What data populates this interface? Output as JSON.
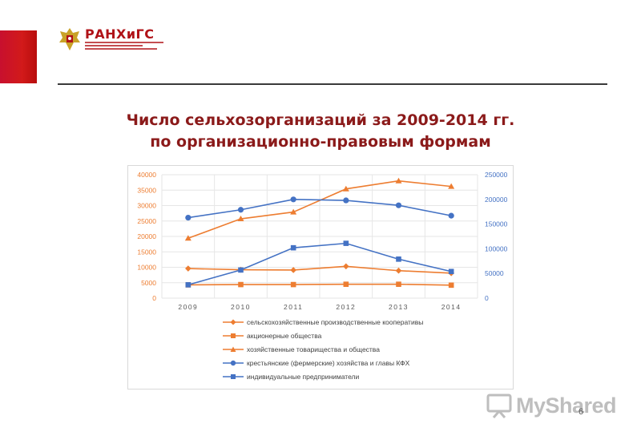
{
  "header": {
    "logo_name": "РАНХиГС",
    "logo_subtitle_lines": [
      "РОССИЙСКАЯ АКАДЕМИЯ НАРОДНОГО ХОЗЯЙСТВА",
      "И ГОСУДАРСТВЕННОЙ СЛУЖБЫ",
      "ПРИ ПРЕЗИДЕНТЕ РОССИЙСКОЙ ФЕДЕРАЦИИ"
    ],
    "accent_color": "#c8102e"
  },
  "title_line1": "Число сельхозорганизаций за 2009-2014 гг.",
  "title_line2": "по организационно-правовым формам",
  "page_number": "6",
  "watermark_text": "MyShared",
  "chart_data": {
    "type": "line",
    "x": [
      "2009",
      "2010",
      "2011",
      "2012",
      "2013",
      "2014"
    ],
    "y_left": {
      "ylim": [
        0,
        40000
      ],
      "ticks": [
        "0",
        "5000",
        "10000",
        "15000",
        "20000",
        "25000",
        "30000",
        "35000",
        "40000"
      ]
    },
    "y_right": {
      "ylim": [
        0,
        250000
      ],
      "ticks": [
        "0",
        "50000",
        "100000",
        "150000",
        "200000",
        "250000"
      ]
    },
    "grid": true,
    "legend_position": "bottom",
    "series": [
      {
        "name": "сельскохозяйственные производственные кооперативы",
        "axis": "left",
        "color": "#ed7d31",
        "marker": "diamond",
        "values": [
          9600,
          9200,
          9100,
          10300,
          8900,
          8100
        ]
      },
      {
        "name": "акционерные общества",
        "axis": "left",
        "color": "#ed7d31",
        "marker": "square",
        "values": [
          4300,
          4400,
          4400,
          4500,
          4500,
          4200
        ]
      },
      {
        "name": "хозяйственные товарищества и общества",
        "axis": "left",
        "color": "#ed7d31",
        "marker": "triangle",
        "values": [
          19400,
          25700,
          27900,
          35400,
          38000,
          36200
        ]
      },
      {
        "name": "крестьянские (фермерские) хозяйства и главы КФХ",
        "axis": "right",
        "color": "#4472c4",
        "marker": "circle",
        "values": [
          163000,
          179000,
          200000,
          198000,
          188000,
          167000
        ]
      },
      {
        "name": "индивидуальные предприниматели",
        "axis": "right",
        "color": "#4472c4",
        "marker": "square",
        "values": [
          27000,
          57000,
          102000,
          111000,
          79000,
          54000
        ]
      }
    ]
  }
}
